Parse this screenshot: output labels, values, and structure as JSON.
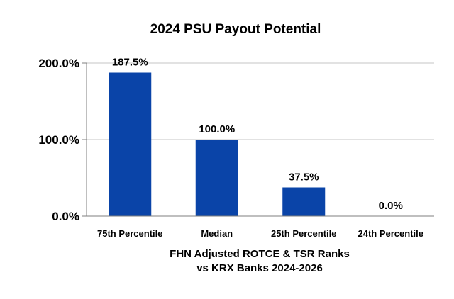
{
  "chart_data": {
    "type": "bar",
    "title": "2024 PSU Payout Potential",
    "categories": [
      "75th Percentile",
      "Median",
      "25th Percentile",
      "24th Percentile"
    ],
    "values": [
      187.5,
      100.0,
      37.5,
      0.0
    ],
    "data_labels": [
      "187.5%",
      "100.0%",
      "37.5%",
      "0.0%"
    ],
    "ylim": [
      0,
      200
    ],
    "yticks": [
      0,
      100,
      200
    ],
    "ytick_labels": [
      "0.0%",
      "100.0%",
      "200.0%"
    ],
    "xlabel": [
      "FHN Adjusted ROTCE & TSR Ranks",
      "vs KRX Banks 2024-2026"
    ],
    "ylabel": "",
    "grid": true,
    "bar_color": "#0a44a8",
    "grid_color": "#d9d9d9"
  }
}
